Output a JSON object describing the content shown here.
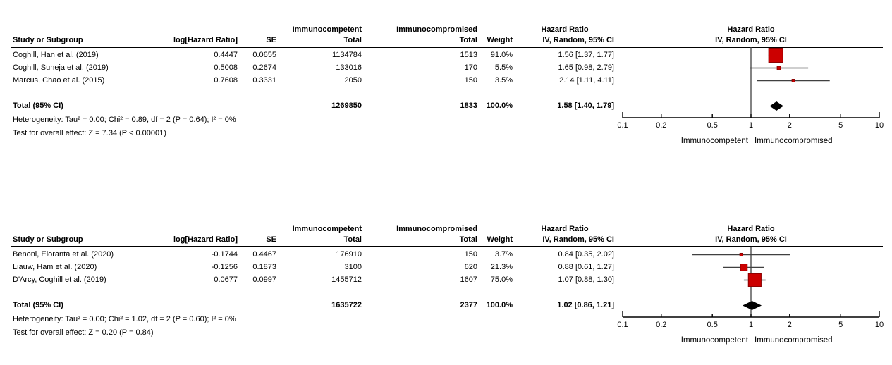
{
  "colors": {
    "square_fill": "#CC0000",
    "square_border": "#8B0000",
    "ci_line": "#404040",
    "diamond": "#000000",
    "axis": "#000000",
    "text": "#000000"
  },
  "table_headers": {
    "study": "Study or Subgroup",
    "log_hr": "log[Hazard Ratio]",
    "se": "SE",
    "group1": "Immunocompetent",
    "group2": "Immunocompromised",
    "total": "Total",
    "weight": "Weight",
    "hr_line1": "Hazard Ratio",
    "hr_line2": "IV, Random, 95% CI"
  },
  "chart_data": [
    {
      "type": "forest",
      "title": "Hazard Ratio",
      "subtitle": "IV, Random, 95% CI",
      "x_scale": "log",
      "xlim": [
        0.1,
        10
      ],
      "x_ticks": [
        0.1,
        0.2,
        0.5,
        1,
        2,
        5,
        10
      ],
      "null_line": 1,
      "footer_left": "Immunocompetent",
      "footer_right": "Immunocompromised",
      "studies": [
        {
          "label": "Coghill, Han et al. (2019)",
          "log_hr": "0.4447",
          "se": "0.0655",
          "total_competent": "1134784",
          "total_compromised": "1513",
          "weight": "91.0%",
          "weight_pct": 91.0,
          "hr_text": "1.56 [1.37, 1.77]",
          "hr": 1.56,
          "ci_low": 1.37,
          "ci_high": 1.77
        },
        {
          "label": "Coghill, Suneja et al. (2019)",
          "log_hr": "0.5008",
          "se": "0.2674",
          "total_competent": "133016",
          "total_compromised": "170",
          "weight": "5.5%",
          "weight_pct": 5.5,
          "hr_text": "1.65 [0.98, 2.79]",
          "hr": 1.65,
          "ci_low": 0.98,
          "ci_high": 2.79
        },
        {
          "label": "Marcus, Chao et al. (2015)",
          "log_hr": "0.7608",
          "se": "0.3331",
          "total_competent": "2050",
          "total_compromised": "150",
          "weight": "3.5%",
          "weight_pct": 3.5,
          "hr_text": "2.14 [1.11, 4.11]",
          "hr": 2.14,
          "ci_low": 1.11,
          "ci_high": 4.11
        }
      ],
      "total": {
        "label": "Total (95% CI)",
        "total_competent": "1269850",
        "total_compromised": "1833",
        "weight": "100.0%",
        "hr_text": "1.58 [1.40, 1.79]",
        "hr": 1.58,
        "ci_low": 1.4,
        "ci_high": 1.79
      },
      "heterogeneity": "Heterogeneity: Tau² = 0.00; Chi² = 0.89, df = 2 (P = 0.64); I² = 0%",
      "overall_effect": "Test for overall effect: Z = 7.34 (P < 0.00001)"
    },
    {
      "type": "forest",
      "title": "Hazard Ratio",
      "subtitle": "IV, Random, 95% CI",
      "x_scale": "log",
      "xlim": [
        0.1,
        10
      ],
      "x_ticks": [
        0.1,
        0.2,
        0.5,
        1,
        2,
        5,
        10
      ],
      "null_line": 1,
      "footer_left": "Immunocompetent",
      "footer_right": "Immunocompromised",
      "studies": [
        {
          "label": "Benoni, Eloranta et al. (2020)",
          "log_hr": "-0.1744",
          "se": "0.4467",
          "total_competent": "176910",
          "total_compromised": "150",
          "weight": "3.7%",
          "weight_pct": 3.7,
          "hr_text": "0.84 [0.35, 2.02]",
          "hr": 0.84,
          "ci_low": 0.35,
          "ci_high": 2.02
        },
        {
          "label": "Liauw, Ham et al. (2020)",
          "log_hr": "-0.1256",
          "se": "0.1873",
          "total_competent": "3100",
          "total_compromised": "620",
          "weight": "21.3%",
          "weight_pct": 21.3,
          "hr_text": "0.88 [0.61, 1.27]",
          "hr": 0.88,
          "ci_low": 0.61,
          "ci_high": 1.27
        },
        {
          "label": "D'Arcy, Coghill et al. (2019)",
          "log_hr": "0.0677",
          "se": "0.0997",
          "total_competent": "1455712",
          "total_compromised": "1607",
          "weight": "75.0%",
          "weight_pct": 75.0,
          "hr_text": "1.07 [0.88, 1.30]",
          "hr": 1.07,
          "ci_low": 0.88,
          "ci_high": 1.3
        }
      ],
      "total": {
        "label": "Total (95% CI)",
        "total_competent": "1635722",
        "total_compromised": "2377",
        "weight": "100.0%",
        "hr_text": "1.02 [0.86, 1.21]",
        "hr": 1.02,
        "ci_low": 0.86,
        "ci_high": 1.21
      },
      "heterogeneity": "Heterogeneity: Tau² = 0.00; Chi² = 1.02, df = 2 (P = 0.60); I² = 0%",
      "overall_effect": "Test for overall effect: Z = 0.20 (P = 0.84)"
    }
  ]
}
